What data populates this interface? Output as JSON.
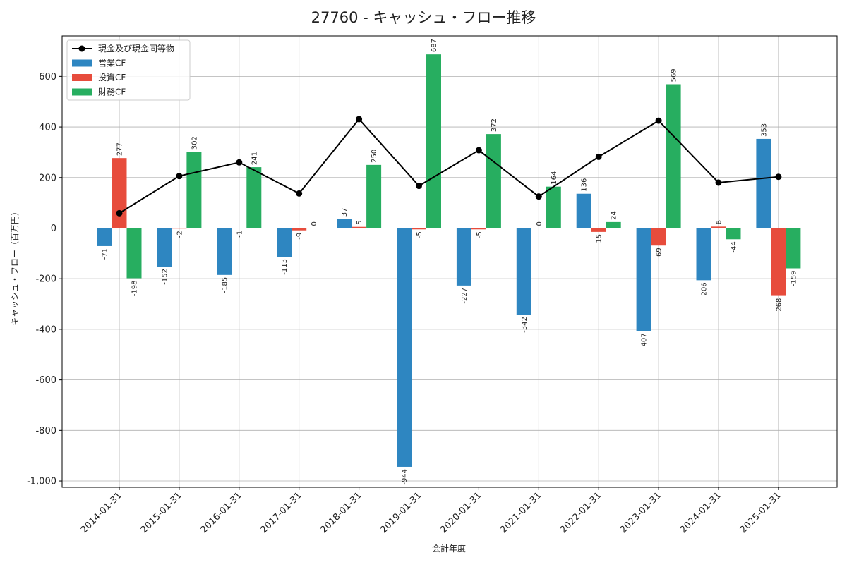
{
  "chart_data": {
    "type": "bar",
    "title": "27760 - キャッシュ・フロー推移",
    "xlabel": "会計年度",
    "ylabel": "キャッシュ・フロー（百万円）",
    "categories": [
      "2014-01-31",
      "2015-01-31",
      "2016-01-31",
      "2017-01-31",
      "2018-01-31",
      "2019-01-31",
      "2020-01-31",
      "2021-01-31",
      "2022-01-31",
      "2023-01-31",
      "2024-01-31",
      "2025-01-31"
    ],
    "series": [
      {
        "name": "営業CF",
        "kind": "bar",
        "color": "#2E86C1",
        "values": [
          -71,
          -152,
          -185,
          -113,
          37,
          -944,
          -227,
          -342,
          136,
          -407,
          -206,
          353
        ]
      },
      {
        "name": "投資CF",
        "kind": "bar",
        "color": "#E74C3C",
        "values": [
          277,
          -2,
          -1,
          -9,
          5,
          -5,
          -5,
          0,
          -15,
          -69,
          6,
          -268
        ]
      },
      {
        "name": "財務CF",
        "kind": "bar",
        "color": "#27AE60",
        "values": [
          -198,
          302,
          241,
          0,
          250,
          687,
          372,
          164,
          24,
          569,
          -44,
          -159
        ]
      },
      {
        "name": "現金及び現金同等物",
        "kind": "line",
        "color": "#000000",
        "values": [
          59,
          206,
          260,
          137,
          431,
          167,
          308,
          125,
          282,
          425,
          180,
          203
        ]
      }
    ],
    "ylim": [
      -1025,
      760
    ],
    "yticks": [
      -1000,
      -800,
      -600,
      -400,
      -200,
      0,
      200,
      400,
      600
    ],
    "ytick_labels": [
      "-1,000",
      "-800",
      "-600",
      "-400",
      "-200",
      "0",
      "200",
      "400",
      "600"
    ],
    "grid": true,
    "legend_position": "top-left"
  }
}
